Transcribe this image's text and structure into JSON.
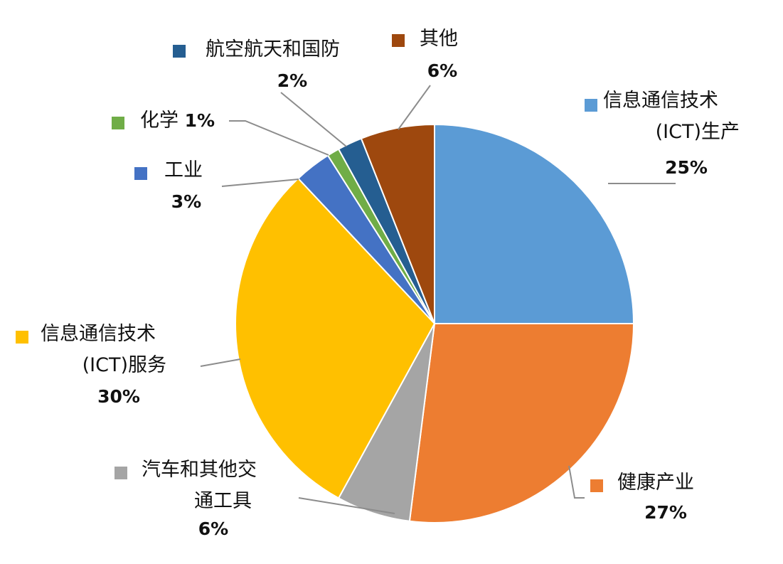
{
  "chart_data": {
    "type": "pie",
    "title": "",
    "slices": [
      {
        "name_lines": [
          "信息通信技术",
          "(ICT)生产"
        ],
        "value": 25,
        "value_label": "25%",
        "color": "#5B9BD5"
      },
      {
        "name_lines": [
          "健康产业"
        ],
        "value": 27,
        "value_label": "27%",
        "color": "#ED7D31"
      },
      {
        "name_lines": [
          "汽车和其他交",
          "通工具"
        ],
        "value": 6,
        "value_label": "6%",
        "color": "#A5A5A5"
      },
      {
        "name_lines": [
          "信息通信技术",
          "(ICT)服务"
        ],
        "value": 30,
        "value_label": "30%",
        "color": "#FFC000"
      },
      {
        "name_lines": [
          "工业"
        ],
        "value": 3,
        "value_label": "3%",
        "color": "#4472C4"
      },
      {
        "name_lines": [
          "化学"
        ],
        "value": 1,
        "value_label": "1%",
        "color": "#70AD47"
      },
      {
        "name_lines": [
          "航空航天和国防"
        ],
        "value": 2,
        "value_label": "2%",
        "color": "#255E91"
      },
      {
        "name_lines": [
          "其他"
        ],
        "value": 6,
        "value_label": "6%",
        "color": "#9E480E"
      }
    ],
    "legend": "labels-outside-with-leader-lines"
  }
}
